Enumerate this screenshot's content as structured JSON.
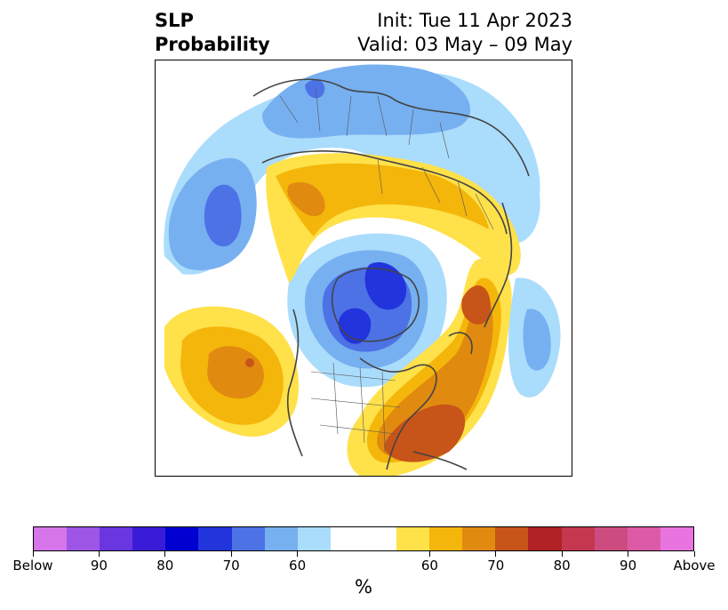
{
  "title": {
    "left_line1": "SLP",
    "left_line2": "Probability",
    "right_line1": "Init: Tue 11 Apr 2023",
    "right_line2": "Valid: 03 May – 09 May"
  },
  "colorbar": {
    "below_colors": [
      "#d674ea",
      "#9d56e6",
      "#6a36df",
      "#3a1bd8",
      "#0000d0",
      "#2234dc",
      "#4c72e6",
      "#76b0f0",
      "#aadcfc"
    ],
    "neutral_color": "#ffffff",
    "above_colors": [
      "#ffe14a",
      "#f4b60a",
      "#e08a10",
      "#c75418",
      "#b02226",
      "#c4374e",
      "#cc4c80",
      "#dc5aa6",
      "#e874e0"
    ],
    "tick_labels": [
      "Below",
      "90",
      "80",
      "70",
      "60",
      "60",
      "70",
      "80",
      "90",
      "Above"
    ],
    "unit": "%"
  }
}
